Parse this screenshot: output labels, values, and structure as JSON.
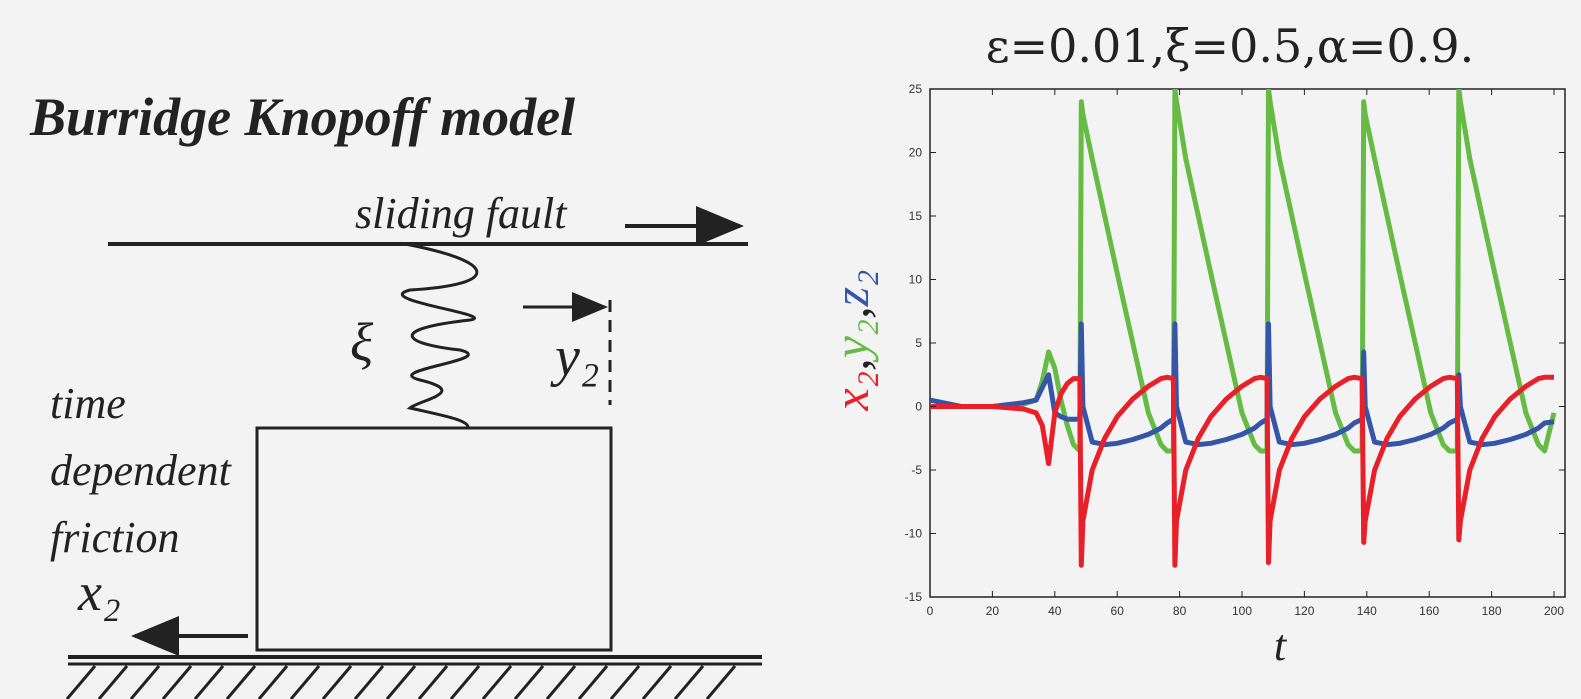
{
  "diagram": {
    "title": "Burridge Knopoff model",
    "fault_label": "sliding fault",
    "spring_label": "ξ",
    "displacement_label": "y₂",
    "friction_label": [
      "time",
      "dependent",
      "friction"
    ],
    "block_label": "x₂"
  },
  "chart_data": {
    "type": "line",
    "title": "ε=0.01,ξ=0.5,α=0.9.",
    "x_label": "t",
    "y_label_separator": ",",
    "xlim": [
      0,
      200
    ],
    "ylim": [
      -15,
      25
    ],
    "xticks": [
      0,
      20,
      40,
      60,
      80,
      100,
      120,
      140,
      160,
      180,
      200
    ],
    "yticks": [
      -15,
      -10,
      -5,
      0,
      5,
      10,
      15,
      20,
      25
    ],
    "x": [
      0,
      10,
      20,
      30,
      34,
      36,
      38,
      40,
      42,
      44,
      46,
      48,
      48.5,
      49,
      52,
      56,
      60,
      65,
      70,
      74,
      76,
      78,
      78.5,
      79,
      82,
      86,
      90,
      95,
      100,
      104,
      106,
      108,
      108.5,
      109,
      112,
      116,
      120,
      125,
      130,
      134,
      136,
      138.5,
      139,
      139.5,
      142.5,
      146.5,
      150.5,
      155.5,
      160.5,
      164.5,
      166.5,
      169,
      169.5,
      170,
      173,
      177,
      181,
      186,
      191,
      195,
      197,
      200
    ],
    "series": [
      {
        "name": "x₂",
        "color": "#e8202a",
        "values": [
          0,
          0,
          0,
          -0.2,
          -0.5,
          -1.5,
          -4.5,
          -0.5,
          1,
          1.8,
          2.2,
          2.2,
          -12.5,
          -9,
          -5,
          -2.5,
          -0.8,
          0.6,
          1.6,
          2.2,
          2.3,
          2.2,
          -12.5,
          -9,
          -5,
          -2.5,
          -0.8,
          0.6,
          1.6,
          2.2,
          2.3,
          2.2,
          -12.3,
          -9,
          -5,
          -2.5,
          -0.8,
          0.6,
          1.6,
          2.2,
          2.3,
          2.2,
          -10.7,
          -9,
          -5,
          -2.5,
          -0.8,
          0.6,
          1.6,
          2.2,
          2.3,
          2.2,
          -10.5,
          -9,
          -5,
          -2.5,
          -0.8,
          0.6,
          1.6,
          2.2,
          2.3,
          2.3
        ]
      },
      {
        "name": "y₂",
        "color": "#66bb44",
        "values": [
          0,
          0,
          0,
          0.2,
          0.5,
          2,
          4.3,
          3,
          0.5,
          -1.5,
          -3,
          -3.5,
          24,
          23,
          19.5,
          15,
          10.5,
          5,
          -0.5,
          -3,
          -3.5,
          -3.5,
          25,
          24,
          19.5,
          15,
          10.5,
          5,
          -0.5,
          -3,
          -3.5,
          -3.5,
          25,
          24,
          19.5,
          15,
          10.5,
          5,
          -0.5,
          -3,
          -3.5,
          -3.5,
          24,
          23,
          19.5,
          15,
          10.5,
          5,
          -0.5,
          -3,
          -3.5,
          -3.5,
          25,
          24,
          19.5,
          15,
          10.5,
          5,
          -0.5,
          -3,
          -3.5,
          -0.5
        ]
      },
      {
        "name": "z₂",
        "color": "#3455a8",
        "values": [
          0.5,
          0,
          0,
          0.3,
          0.5,
          1.5,
          2.5,
          -0.5,
          -0.8,
          -1,
          -1,
          -1,
          6.5,
          0,
          -2.8,
          -3,
          -2.9,
          -2.6,
          -2.2,
          -1.7,
          -1.3,
          -1,
          6.5,
          0,
          -2.8,
          -3,
          -2.9,
          -2.6,
          -2.2,
          -1.7,
          -1.3,
          -1,
          6.5,
          0,
          -2.8,
          -3,
          -2.9,
          -2.6,
          -2.2,
          -1.7,
          -1.3,
          -1,
          4.3,
          0,
          -2.8,
          -3,
          -2.9,
          -2.6,
          -2.2,
          -1.7,
          -1.3,
          -1,
          2.5,
          0,
          -2.8,
          -3,
          -2.9,
          -2.6,
          -2.2,
          -1.7,
          -1.3,
          -1.2
        ]
      }
    ]
  }
}
